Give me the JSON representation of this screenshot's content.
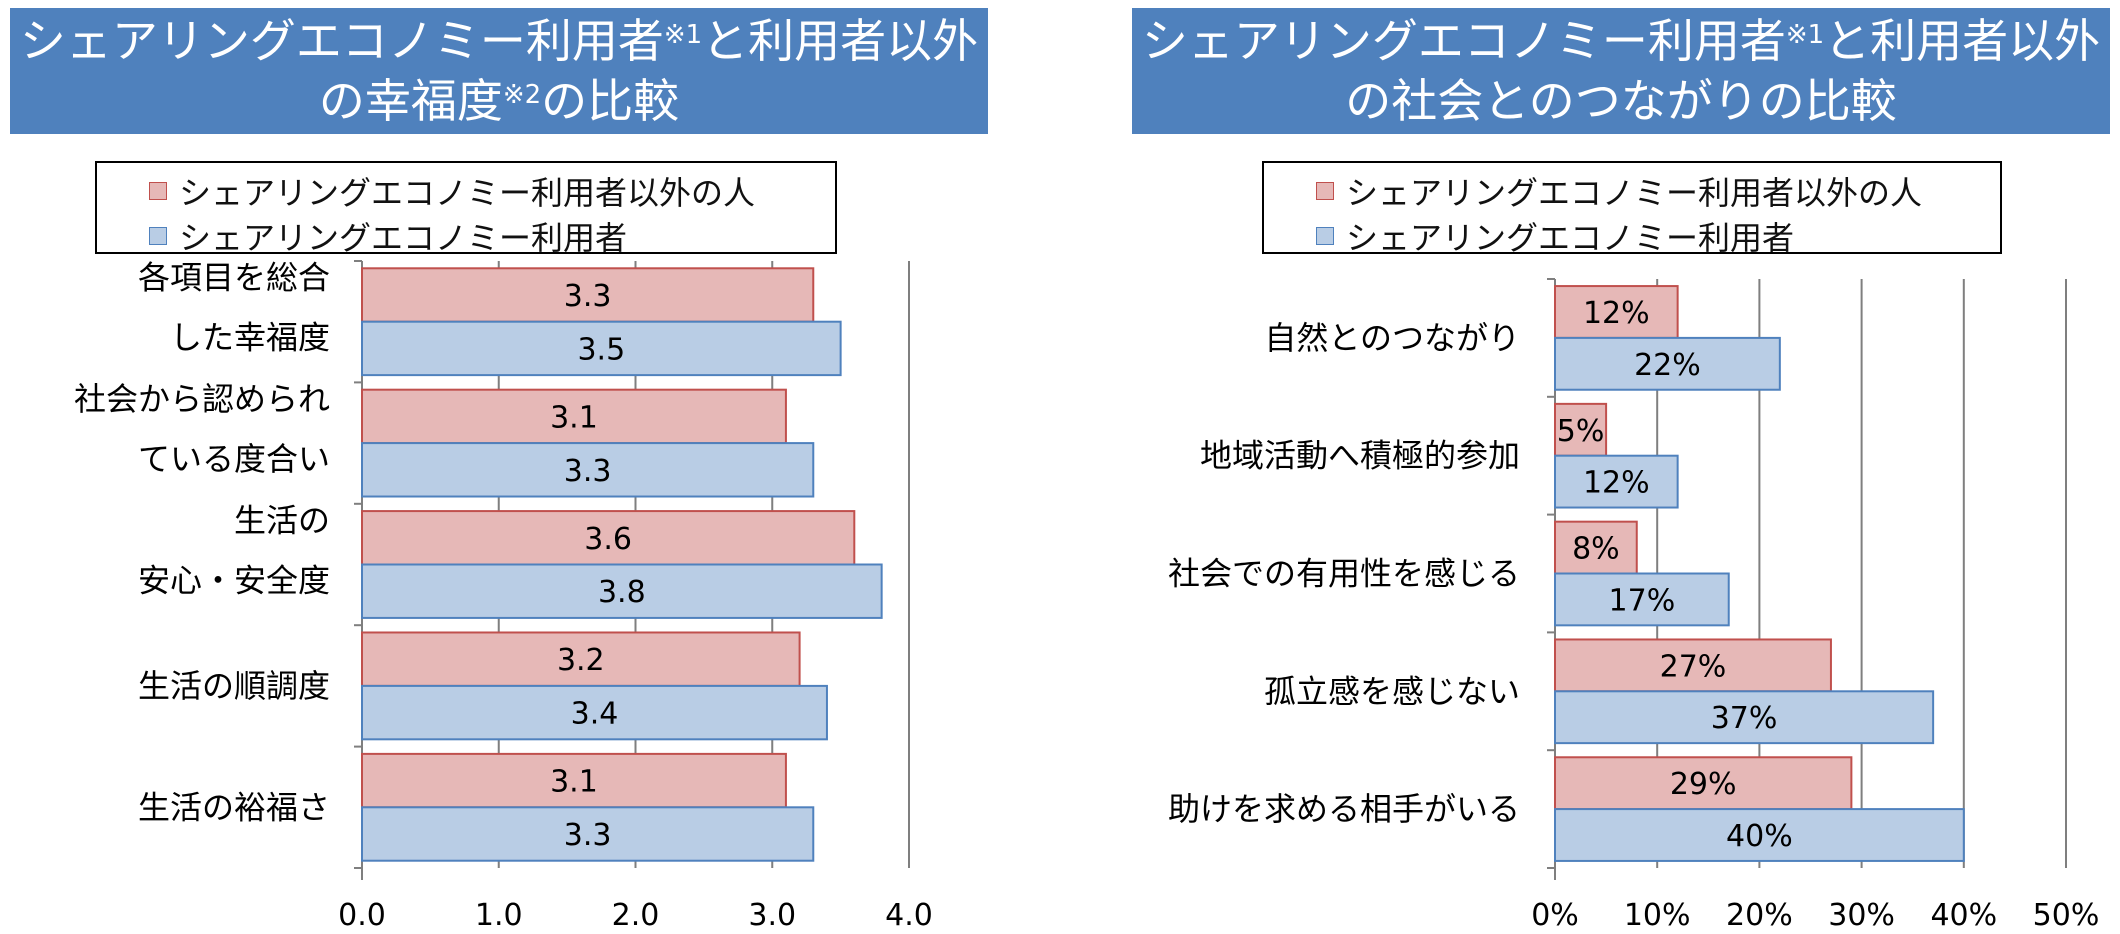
{
  "left_panel": {
    "title_line1_a": "シェアリングエコノミー利用者",
    "title_line1_sup": "※1",
    "title_line1_b": "と利用者以外",
    "title_line2_a": "の幸福度",
    "title_line2_sup": "※2",
    "title_line2_b": "の比較",
    "legend": {
      "non_user": "シェアリングエコノミー利用者以外の人",
      "user": "シェアリングエコノミー利用者"
    }
  },
  "right_panel": {
    "title_line1_a": "シェアリングエコノミー利用者",
    "title_line1_sup": "※1",
    "title_line1_b": "と利用者以外",
    "title_line2": "の社会とのつながりの比較",
    "legend": {
      "non_user": "シェアリングエコノミー利用者以外の人",
      "user": "シェアリングエコノミー利用者"
    }
  },
  "colors": {
    "title_bg": "#4f81bd",
    "non_user_fill": "#e6b8b7",
    "non_user_stroke": "#c0504d",
    "user_fill": "#b9cde5",
    "user_stroke": "#4f81bd"
  },
  "chart_data": [
    {
      "type": "bar",
      "orientation": "horizontal",
      "title": "シェアリングエコノミー利用者※1と利用者以外の幸福度※2の比較",
      "categories": [
        [
          "各項目を総合",
          "した幸福度"
        ],
        [
          "社会から認められ",
          "ている度合い"
        ],
        [
          "生活の",
          "安心・安全度"
        ],
        [
          "生活の順調度"
        ],
        [
          "生活の裕福さ"
        ]
      ],
      "series": [
        {
          "name": "シェアリングエコノミー利用者以外の人",
          "values": [
            3.3,
            3.1,
            3.6,
            3.2,
            3.1
          ],
          "labels": [
            "3.3",
            "3.1",
            "3.6",
            "3.2",
            "3.1"
          ]
        },
        {
          "name": "シェアリングエコノミー利用者",
          "values": [
            3.5,
            3.3,
            3.8,
            3.4,
            3.3
          ],
          "labels": [
            "3.5",
            "3.3",
            "3.8",
            "3.4",
            "3.3"
          ]
        }
      ],
      "xlim": [
        0,
        4
      ],
      "xticks": [
        0,
        1,
        2,
        3,
        4
      ],
      "xtick_labels": [
        "0.0",
        "1.0",
        "2.0",
        "3.0",
        "4.0"
      ],
      "grid": "vertical",
      "legend": "top"
    },
    {
      "type": "bar",
      "orientation": "horizontal",
      "title": "シェアリングエコノミー利用者※1と利用者以外の社会とのつながりの比較",
      "categories": [
        [
          "自然とのつながり"
        ],
        [
          "地域活動へ積極的参加"
        ],
        [
          "社会での有用性を感じる"
        ],
        [
          "孤立感を感じない"
        ],
        [
          "助けを求める相手がいる"
        ]
      ],
      "series": [
        {
          "name": "シェアリングエコノミー利用者以外の人",
          "values": [
            12,
            5,
            8,
            27,
            29
          ],
          "labels": [
            "12%",
            "5%",
            "8%",
            "27%",
            "29%"
          ]
        },
        {
          "name": "シェアリングエコノミー利用者",
          "values": [
            22,
            12,
            17,
            37,
            40
          ],
          "labels": [
            "22%",
            "12%",
            "17%",
            "37%",
            "40%"
          ]
        }
      ],
      "xlim": [
        0,
        50
      ],
      "xticks": [
        0,
        10,
        20,
        30,
        40,
        50
      ],
      "xtick_labels": [
        "0%",
        "10%",
        "20%",
        "30%",
        "40%",
        "50%"
      ],
      "grid": "vertical",
      "legend": "top"
    }
  ]
}
